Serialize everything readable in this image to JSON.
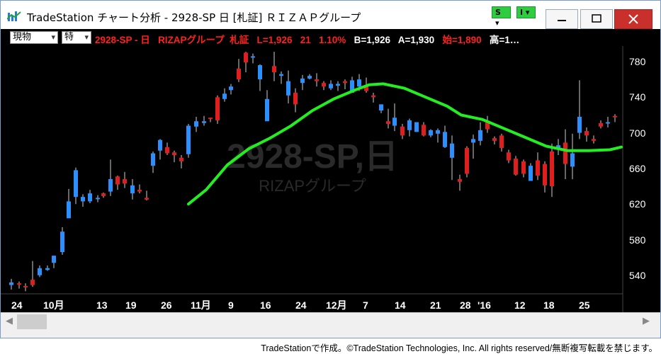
{
  "window": {
    "title": "TradeStation チャート分析 - 2928-SP 日 [札証] ＲＩＺＡＰグループ",
    "badges": {
      "s": "S",
      "i": "I"
    }
  },
  "toolbar": {
    "select_1": "現物",
    "select_2": "特",
    "quote": {
      "symbol": "2928-SP - 日",
      "name": "RIZAPグループ",
      "exchange": "札証",
      "last": "L=1,926",
      "change": "21",
      "change_pct": "1.10%",
      "bid": "B=1,926",
      "ask": "A=1,930",
      "open": "始=1,890",
      "high": "高=1…"
    }
  },
  "chart": {
    "watermark_symbol": "2928-SP,日",
    "watermark_name": "RIZAPグループ",
    "y_ticks": [
      "780",
      "740",
      "700",
      "660",
      "620",
      "580",
      "540"
    ],
    "x_ticks": [
      "24",
      "10月",
      "13",
      "19",
      "26",
      "11月",
      "9",
      "16",
      "24",
      "12月",
      "7",
      "14",
      "21",
      "28",
      "'16",
      "12",
      "18",
      "25"
    ]
  },
  "footer": {
    "text": "TradeStationで作成。©TradeStation Technologies, Inc. All rights reserved/無断複写転載を禁じます。"
  }
}
